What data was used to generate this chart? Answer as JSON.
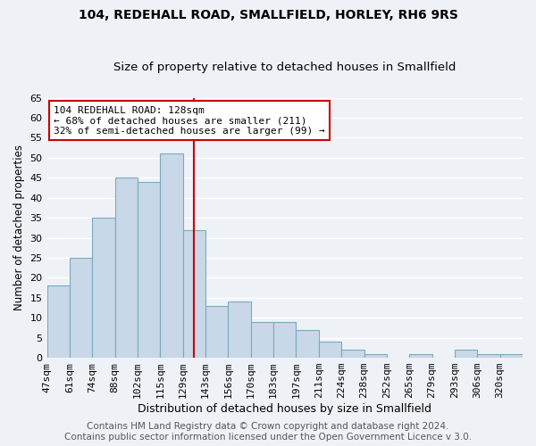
{
  "title1": "104, REDEHALL ROAD, SMALLFIELD, HORLEY, RH6 9RS",
  "title2": "Size of property relative to detached houses in Smallfield",
  "xlabel": "Distribution of detached houses by size in Smallfield",
  "ylabel": "Number of detached properties",
  "bar_labels": [
    "47sqm",
    "61sqm",
    "74sqm",
    "88sqm",
    "102sqm",
    "115sqm",
    "129sqm",
    "143sqm",
    "156sqm",
    "170sqm",
    "183sqm",
    "197sqm",
    "211sqm",
    "224sqm",
    "238sqm",
    "252sqm",
    "265sqm",
    "279sqm",
    "293sqm",
    "306sqm",
    "320sqm"
  ],
  "bar_values": [
    18,
    25,
    35,
    45,
    44,
    51,
    32,
    13,
    14,
    9,
    9,
    7,
    4,
    2,
    1,
    0,
    1,
    0,
    2,
    1,
    1
  ],
  "bar_color": "#c8d8e8",
  "bar_edge_color": "#7aaabe",
  "bar_linewidth": 0.8,
  "vline_x": 6.5,
  "vline_color": "#cc0000",
  "annotation_text": "104 REDEHALL ROAD: 128sqm\n← 68% of detached houses are smaller (211)\n32% of semi-detached houses are larger (99) →",
  "annotation_box_color": "#ffffff",
  "annotation_box_edge": "#cc0000",
  "ylim": [
    0,
    65
  ],
  "yticks": [
    0,
    5,
    10,
    15,
    20,
    25,
    30,
    35,
    40,
    45,
    50,
    55,
    60,
    65
  ],
  "footer_text": "Contains HM Land Registry data © Crown copyright and database right 2024.\nContains public sector information licensed under the Open Government Licence v 3.0.",
  "background_color": "#eef2f7",
  "grid_color": "#ffffff",
  "title1_fontsize": 10,
  "title2_fontsize": 9.5,
  "xlabel_fontsize": 9,
  "ylabel_fontsize": 8.5,
  "tick_fontsize": 8,
  "annot_fontsize": 8,
  "footer_fontsize": 7.5
}
